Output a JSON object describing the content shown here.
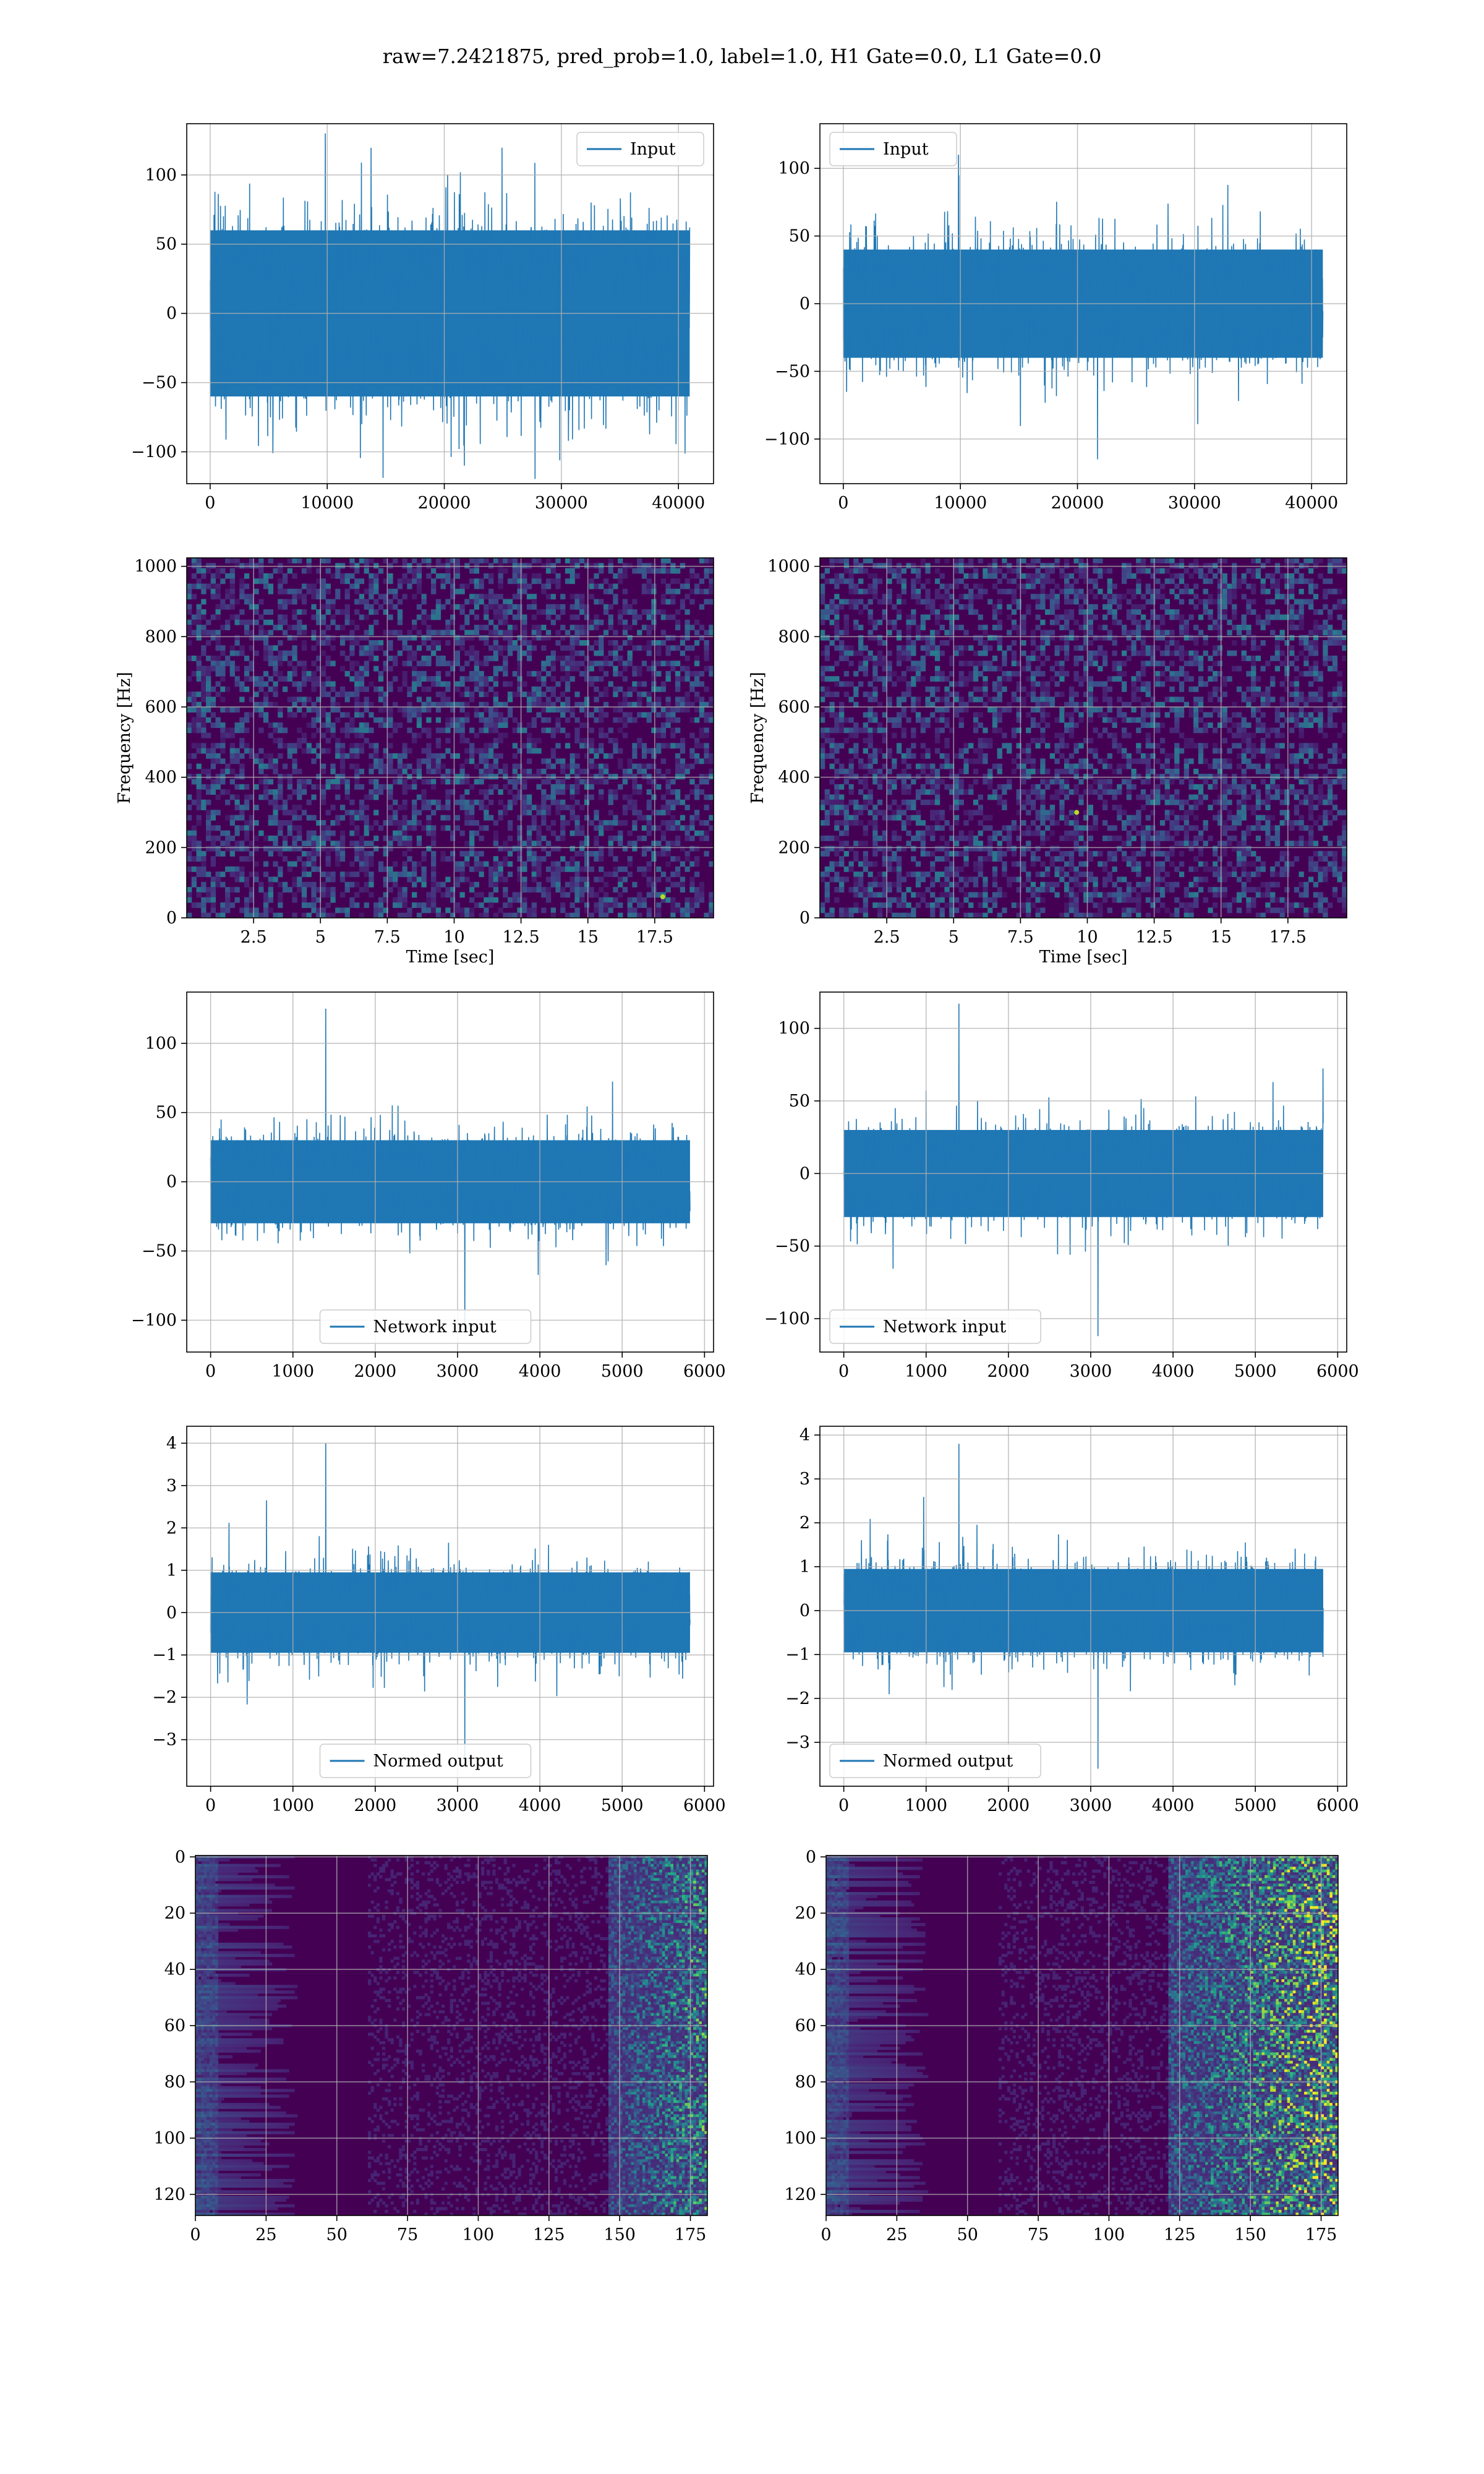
{
  "title": "raw=7.2421875, pred_prob=1.0, label=1.0, H1 Gate=0.0, L1 Gate=0.0",
  "colors": {
    "line": "#1f77b4",
    "viridis_dark": "#440154",
    "viridis_mid": "#21918c",
    "viridis_bright": "#fde725"
  },
  "chart_data": [
    {
      "id": "input-h1",
      "type": "line",
      "series": [
        {
          "name": "Input"
        }
      ],
      "x_range": [
        0,
        40960
      ],
      "xlim": [
        -2000,
        43000
      ],
      "ylim": [
        -123,
        137
      ],
      "y_envelope": 60,
      "y_peaks": [
        130,
        -110
      ],
      "xticks": [
        0,
        10000,
        20000,
        30000,
        40000
      ],
      "yticks": [
        -100,
        -50,
        0,
        50,
        100
      ],
      "legend": "upper-right",
      "grid": true
    },
    {
      "id": "input-l1",
      "type": "line",
      "series": [
        {
          "name": "Input"
        }
      ],
      "x_range": [
        0,
        40960
      ],
      "xlim": [
        -2000,
        43000
      ],
      "ylim": [
        -133,
        133
      ],
      "y_envelope": 40,
      "y_peaks": [
        110,
        -115
      ],
      "xticks": [
        0,
        10000,
        20000,
        30000,
        40000
      ],
      "yticks": [
        -100,
        -50,
        0,
        50,
        100
      ],
      "legend": "upper-left",
      "grid": true
    },
    {
      "id": "spectrogram-h1",
      "type": "heatmap",
      "xlim": [
        0,
        19.7
      ],
      "ylim": [
        0,
        1024
      ],
      "xticks": [
        2.5,
        5.0,
        7.5,
        10.0,
        12.5,
        15.0,
        17.5
      ],
      "yticks": [
        0,
        200,
        400,
        600,
        800,
        1000
      ],
      "xlabel": "Time [sec]",
      "ylabel": "Frequency [Hz]",
      "grid": true
    },
    {
      "id": "spectrogram-l1",
      "type": "heatmap",
      "xlim": [
        0,
        19.7
      ],
      "ylim": [
        0,
        1024
      ],
      "xticks": [
        2.5,
        5.0,
        7.5,
        10.0,
        12.5,
        15.0,
        17.5
      ],
      "yticks": [
        0,
        200,
        400,
        600,
        800,
        1000
      ],
      "xlabel": "Time [sec]",
      "ylabel": "Frequency [Hz]",
      "grid": true
    },
    {
      "id": "network-input-h1",
      "type": "line",
      "series": [
        {
          "name": "Network input"
        }
      ],
      "x_range": [
        0,
        5824
      ],
      "xlim": [
        -290,
        6110
      ],
      "ylim": [
        -123,
        137
      ],
      "y_envelope": 30,
      "y_peaks": [
        125,
        -105
      ],
      "xticks": [
        0,
        1000,
        2000,
        3000,
        4000,
        5000,
        6000
      ],
      "yticks": [
        -100,
        -50,
        0,
        50,
        100
      ],
      "legend": "lower-center",
      "grid": true
    },
    {
      "id": "network-input-l1",
      "type": "line",
      "series": [
        {
          "name": "Network input"
        }
      ],
      "x_range": [
        0,
        5824
      ],
      "xlim": [
        -290,
        6110
      ],
      "ylim": [
        -123,
        125
      ],
      "y_envelope": 30,
      "y_peaks": [
        117,
        -112
      ],
      "xticks": [
        0,
        1000,
        2000,
        3000,
        4000,
        5000,
        6000
      ],
      "yticks": [
        -100,
        -50,
        0,
        50,
        100
      ],
      "legend": "lower-left",
      "grid": true
    },
    {
      "id": "normed-output-h1",
      "type": "line",
      "series": [
        {
          "name": "Normed output"
        }
      ],
      "x_range": [
        0,
        5824
      ],
      "xlim": [
        -290,
        6110
      ],
      "ylim": [
        -4.1,
        4.4
      ],
      "y_envelope": 0.95,
      "y_peaks": [
        4.0,
        -3.5
      ],
      "xticks": [
        0,
        1000,
        2000,
        3000,
        4000,
        5000,
        6000
      ],
      "yticks": [
        -3,
        -2,
        -1,
        0,
        1,
        2,
        3,
        4
      ],
      "legend": "lower-center",
      "grid": true
    },
    {
      "id": "normed-output-l1",
      "type": "line",
      "series": [
        {
          "name": "Normed output"
        }
      ],
      "x_range": [
        0,
        5824
      ],
      "xlim": [
        -290,
        6110
      ],
      "ylim": [
        -4.0,
        4.2
      ],
      "y_envelope": 0.95,
      "y_peaks": [
        3.8,
        -3.6
      ],
      "xticks": [
        0,
        1000,
        2000,
        3000,
        4000,
        5000,
        6000
      ],
      "yticks": [
        -3,
        -2,
        -1,
        0,
        1,
        2,
        3,
        4
      ],
      "legend": "lower-left",
      "grid": true
    },
    {
      "id": "feature-map-h1",
      "type": "heatmap",
      "xlim": [
        0,
        181
      ],
      "ylim": [
        127.5,
        -0.5
      ],
      "xticks": [
        0,
        25,
        50,
        75,
        100,
        125,
        150,
        175
      ],
      "yticks": [
        0,
        20,
        40,
        60,
        80,
        100,
        120
      ],
      "grid": true
    },
    {
      "id": "feature-map-l1",
      "type": "heatmap",
      "xlim": [
        0,
        181
      ],
      "ylim": [
        127.5,
        -0.5
      ],
      "xticks": [
        0,
        25,
        50,
        75,
        100,
        125,
        150,
        175
      ],
      "yticks": [
        0,
        20,
        40,
        60,
        80,
        100,
        120
      ],
      "grid": true
    }
  ]
}
